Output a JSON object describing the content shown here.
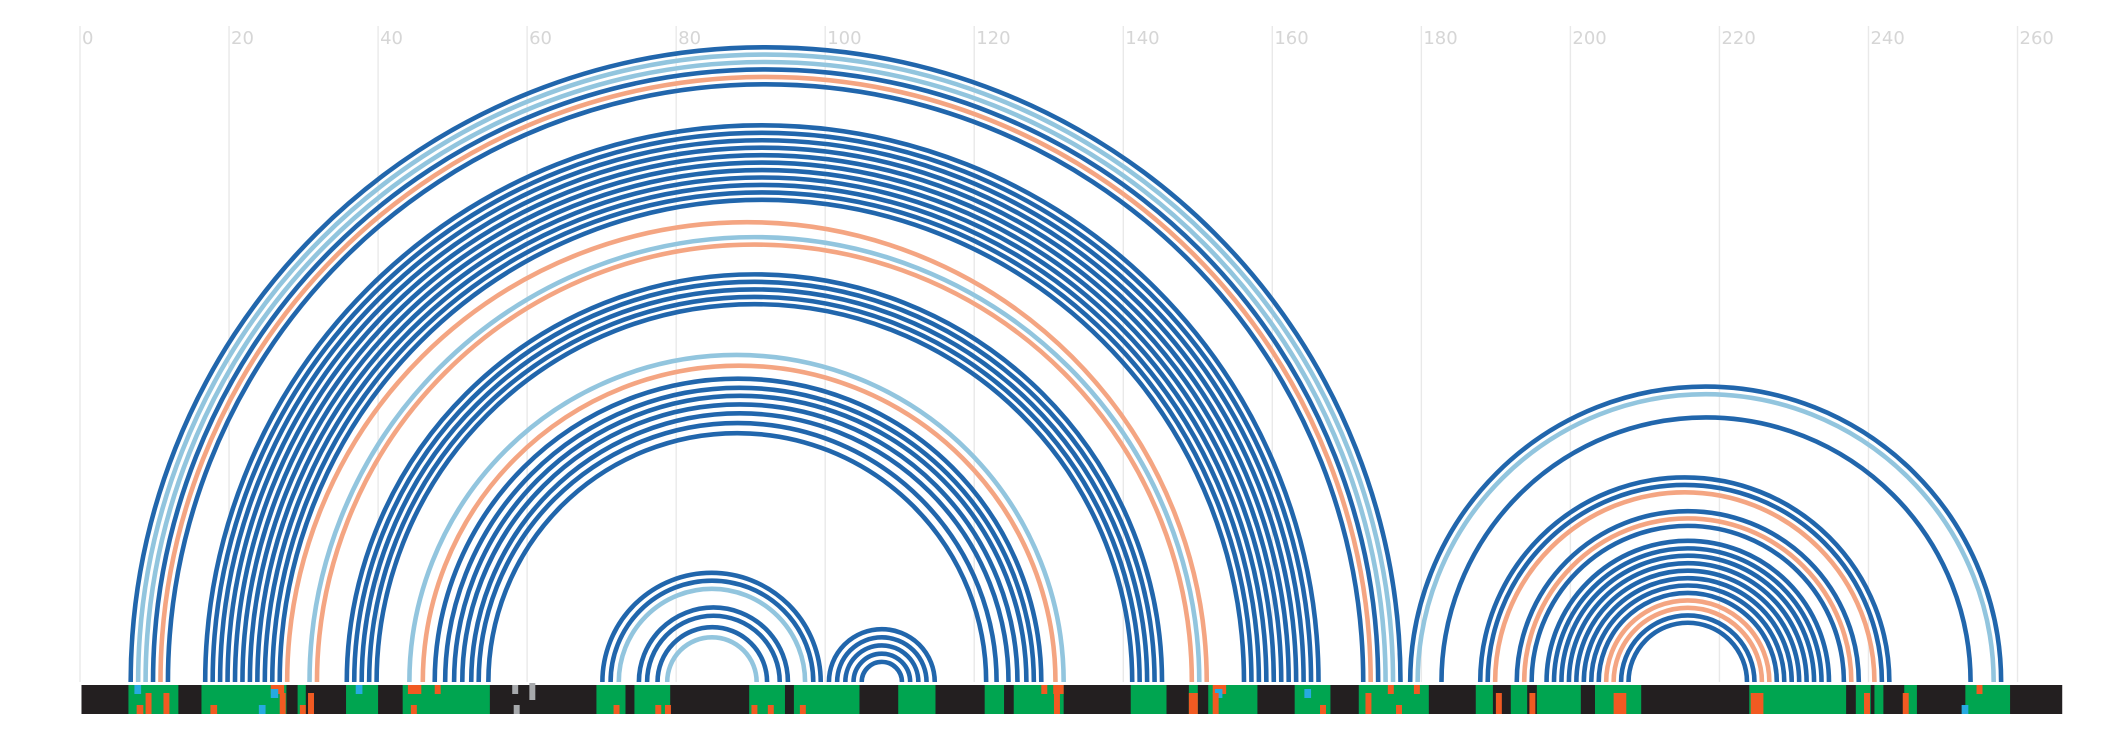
{
  "colors": {
    "paired": "#2166ac",
    "light_paired": "#92c5de",
    "salmon": "#f4a582",
    "track_base": "#231f20",
    "region": "#00a550",
    "mark_orange": "#f15a22",
    "mark_cyan": "#27aae1",
    "mark_gray": "#a7a9ac",
    "grid": "#e9e9e9",
    "tick_text": "#d6d6d6"
  },
  "axis": {
    "min": 0,
    "max": 266,
    "ticks": [
      0,
      20,
      40,
      60,
      80,
      100,
      120,
      140,
      160,
      180,
      200,
      220,
      240,
      260
    ],
    "tick_labels": [
      "0",
      "20",
      "40",
      "60",
      "80",
      "100",
      "120",
      "140",
      "160",
      "180",
      "200",
      "220",
      "240",
      "260"
    ]
  },
  "chart_data": {
    "type": "arc",
    "pairs": [
      {
        "i": 6.8,
        "j": 177.2,
        "kind": "paired"
      },
      {
        "i": 7.8,
        "j": 176.2,
        "kind": "light_paired"
      },
      {
        "i": 8.8,
        "j": 175.2,
        "kind": "light_paired"
      },
      {
        "i": 9.8,
        "j": 174.2,
        "kind": "paired"
      },
      {
        "i": 10.8,
        "j": 173.2,
        "kind": "salmon"
      },
      {
        "i": 11.8,
        "j": 172.2,
        "kind": "paired"
      },
      {
        "i": 16.8,
        "j": 166.2,
        "kind": "paired"
      },
      {
        "i": 17.8,
        "j": 165.2,
        "kind": "paired"
      },
      {
        "i": 18.8,
        "j": 164.2,
        "kind": "paired"
      },
      {
        "i": 19.8,
        "j": 163.2,
        "kind": "paired"
      },
      {
        "i": 20.8,
        "j": 162.2,
        "kind": "paired"
      },
      {
        "i": 21.8,
        "j": 161.2,
        "kind": "paired"
      },
      {
        "i": 22.8,
        "j": 160.2,
        "kind": "paired"
      },
      {
        "i": 23.8,
        "j": 159.2,
        "kind": "paired"
      },
      {
        "i": 24.8,
        "j": 158.2,
        "kind": "paired"
      },
      {
        "i": 25.8,
        "j": 157.2,
        "kind": "paired"
      },
      {
        "i": 26.8,
        "j": 156.2,
        "kind": "paired"
      },
      {
        "i": 27.8,
        "j": 151.2,
        "kind": "salmon"
      },
      {
        "i": 30.8,
        "j": 150.2,
        "kind": "light_paired"
      },
      {
        "i": 31.8,
        "j": 149.2,
        "kind": "salmon"
      },
      {
        "i": 35.8,
        "j": 145.2,
        "kind": "paired"
      },
      {
        "i": 36.8,
        "j": 144.2,
        "kind": "paired"
      },
      {
        "i": 37.8,
        "j": 143.2,
        "kind": "paired"
      },
      {
        "i": 38.8,
        "j": 142.2,
        "kind": "paired"
      },
      {
        "i": 39.8,
        "j": 141.2,
        "kind": "paired"
      },
      {
        "i": 44.2,
        "j": 132.0,
        "kind": "light_paired"
      },
      {
        "i": 46.0,
        "j": 130.9,
        "kind": "salmon"
      },
      {
        "i": 47.6,
        "j": 129.0,
        "kind": "paired"
      },
      {
        "i": 49.0,
        "j": 128.0,
        "kind": "paired"
      },
      {
        "i": 50.2,
        "j": 127.0,
        "kind": "paired"
      },
      {
        "i": 51.3,
        "j": 125.8,
        "kind": "paired"
      },
      {
        "i": 52.5,
        "j": 124.6,
        "kind": "paired"
      },
      {
        "i": 53.5,
        "j": 123.0,
        "kind": "paired"
      },
      {
        "i": 54.8,
        "j": 121.6,
        "kind": "paired"
      },
      {
        "i": 70.1,
        "j": 99.4,
        "kind": "paired"
      },
      {
        "i": 71.2,
        "j": 98.4,
        "kind": "paired"
      },
      {
        "i": 72.3,
        "j": 97.3,
        "kind": "light_paired"
      },
      {
        "i": 75.0,
        "j": 95.0,
        "kind": "paired"
      },
      {
        "i": 76.1,
        "j": 93.9,
        "kind": "paired"
      },
      {
        "i": 77.5,
        "j": 92.2,
        "kind": "paired"
      },
      {
        "i": 78.8,
        "j": 90.8,
        "kind": "light_paired"
      },
      {
        "i": 100.5,
        "j": 114.7,
        "kind": "paired"
      },
      {
        "i": 101.6,
        "j": 113.6,
        "kind": "paired"
      },
      {
        "i": 102.7,
        "j": 112.5,
        "kind": "paired"
      },
      {
        "i": 103.8,
        "j": 111.4,
        "kind": "paired"
      },
      {
        "i": 104.9,
        "j": 110.3,
        "kind": "paired"
      },
      {
        "i": 178.5,
        "j": 257.8,
        "kind": "paired"
      },
      {
        "i": 179.5,
        "j": 256.8,
        "kind": "light_paired"
      },
      {
        "i": 182.7,
        "j": 253.7,
        "kind": "paired"
      },
      {
        "i": 187.9,
        "j": 242.8,
        "kind": "paired"
      },
      {
        "i": 188.9,
        "j": 241.8,
        "kind": "paired"
      },
      {
        "i": 189.9,
        "j": 240.8,
        "kind": "salmon"
      },
      {
        "i": 192.8,
        "j": 238.7,
        "kind": "paired"
      },
      {
        "i": 193.8,
        "j": 237.7,
        "kind": "salmon"
      },
      {
        "i": 194.8,
        "j": 236.7,
        "kind": "paired"
      },
      {
        "i": 196.8,
        "j": 234.7,
        "kind": "paired"
      },
      {
        "i": 197.8,
        "j": 233.7,
        "kind": "paired"
      },
      {
        "i": 198.8,
        "j": 232.7,
        "kind": "paired"
      },
      {
        "i": 199.8,
        "j": 231.7,
        "kind": "paired"
      },
      {
        "i": 200.8,
        "j": 230.7,
        "kind": "paired"
      },
      {
        "i": 201.8,
        "j": 229.7,
        "kind": "paired"
      },
      {
        "i": 202.8,
        "j": 228.7,
        "kind": "paired"
      },
      {
        "i": 203.8,
        "j": 227.7,
        "kind": "paired"
      },
      {
        "i": 204.8,
        "j": 226.7,
        "kind": "salmon"
      },
      {
        "i": 205.8,
        "j": 225.7,
        "kind": "salmon"
      },
      {
        "i": 206.8,
        "j": 224.7,
        "kind": "paired"
      },
      {
        "i": 207.8,
        "j": 223.7,
        "kind": "paired"
      }
    ],
    "track": {
      "regions": [
        [
          6.5,
          13.2
        ],
        [
          16.3,
          27.7
        ],
        [
          29.2,
          30.3
        ],
        [
          35.7,
          40.0
        ],
        [
          43.3,
          55.0
        ],
        [
          69.3,
          73.2
        ],
        [
          74.4,
          79.2
        ],
        [
          89.8,
          94.6
        ],
        [
          95.8,
          104.6
        ],
        [
          109.8,
          114.8
        ],
        [
          121.4,
          124.0
        ],
        [
          125.3,
          132.0
        ],
        [
          141.0,
          145.8
        ],
        [
          148.8,
          150.0
        ],
        [
          151.4,
          158.0
        ],
        [
          163.0,
          167.8
        ],
        [
          171.6,
          181.0
        ],
        [
          187.3,
          189.6
        ],
        [
          192.0,
          194.2
        ],
        [
          195.5,
          201.4
        ],
        [
          203.3,
          209.5
        ],
        [
          224.0,
          237.0
        ],
        [
          238.3,
          240.3
        ],
        [
          240.8,
          242.0
        ],
        [
          244.8,
          246.5
        ],
        [
          253.0,
          259.0
        ]
      ],
      "marks": [
        {
          "x": 7.3,
          "w": 0.9,
          "color": "mark_cyan",
          "band": "top"
        },
        {
          "x": 7.6,
          "w": 0.9,
          "color": "mark_orange",
          "band": "bottom"
        },
        {
          "x": 8.8,
          "w": 0.8,
          "color": "mark_orange",
          "band": "full"
        },
        {
          "x": 11.2,
          "w": 0.8,
          "color": "mark_orange",
          "band": "full"
        },
        {
          "x": 17.5,
          "w": 0.9,
          "color": "mark_orange",
          "band": "bottom"
        },
        {
          "x": 24.0,
          "w": 0.9,
          "color": "mark_cyan",
          "band": "bottom"
        },
        {
          "x": 25.6,
          "w": 1.8,
          "color": "mark_orange",
          "band": "top"
        },
        {
          "x": 25.6,
          "w": 1.0,
          "color": "mark_cyan",
          "band": "upper"
        },
        {
          "x": 26.8,
          "w": 0.8,
          "color": "mark_orange",
          "band": "full"
        },
        {
          "x": 30.6,
          "w": 0.8,
          "color": "mark_orange",
          "band": "full"
        },
        {
          "x": 29.5,
          "w": 0.8,
          "color": "mark_orange",
          "band": "bottom"
        },
        {
          "x": 37.0,
          "w": 0.9,
          "color": "mark_cyan",
          "band": "top"
        },
        {
          "x": 44.0,
          "w": 1.8,
          "color": "mark_orange",
          "band": "top"
        },
        {
          "x": 44.4,
          "w": 0.8,
          "color": "mark_orange",
          "band": "bottom"
        },
        {
          "x": 47.6,
          "w": 0.8,
          "color": "mark_orange",
          "band": "top"
        },
        {
          "x": 71.6,
          "w": 0.8,
          "color": "mark_orange",
          "band": "bottom"
        },
        {
          "x": 77.2,
          "w": 0.8,
          "color": "mark_orange",
          "band": "bottom"
        },
        {
          "x": 78.5,
          "w": 0.8,
          "color": "mark_orange",
          "band": "bottom"
        },
        {
          "x": 90.1,
          "w": 0.8,
          "color": "mark_orange",
          "band": "bottom"
        },
        {
          "x": 92.3,
          "w": 0.8,
          "color": "mark_orange",
          "band": "bottom"
        },
        {
          "x": 96.6,
          "w": 0.8,
          "color": "mark_orange",
          "band": "bottom"
        },
        {
          "x": 129.0,
          "w": 0.8,
          "color": "mark_orange",
          "band": "top"
        },
        {
          "x": 130.6,
          "w": 1.4,
          "color": "mark_orange",
          "band": "top"
        },
        {
          "x": 130.7,
          "w": 0.8,
          "color": "mark_orange",
          "band": "full"
        },
        {
          "x": 148.8,
          "w": 1.2,
          "color": "mark_orange",
          "band": "full"
        },
        {
          "x": 152.0,
          "w": 1.8,
          "color": "mark_orange",
          "band": "top"
        },
        {
          "x": 152.3,
          "w": 1.0,
          "color": "mark_cyan",
          "band": "upper"
        },
        {
          "x": 152.0,
          "w": 0.8,
          "color": "mark_orange",
          "band": "full"
        },
        {
          "x": 164.3,
          "w": 0.9,
          "color": "mark_cyan",
          "band": "upper"
        },
        {
          "x": 166.4,
          "w": 0.8,
          "color": "mark_orange",
          "band": "bottom"
        },
        {
          "x": 172.5,
          "w": 0.8,
          "color": "mark_orange",
          "band": "full"
        },
        {
          "x": 175.5,
          "w": 0.8,
          "color": "mark_orange",
          "band": "top"
        },
        {
          "x": 176.6,
          "w": 0.8,
          "color": "mark_orange",
          "band": "bottom"
        },
        {
          "x": 179.0,
          "w": 0.8,
          "color": "mark_orange",
          "band": "top"
        },
        {
          "x": 190.0,
          "w": 0.8,
          "color": "mark_orange",
          "band": "full"
        },
        {
          "x": 194.5,
          "w": 0.8,
          "color": "mark_orange",
          "band": "full"
        },
        {
          "x": 205.8,
          "w": 1.7,
          "color": "mark_orange",
          "band": "full"
        },
        {
          "x": 224.2,
          "w": 1.7,
          "color": "mark_orange",
          "band": "full"
        },
        {
          "x": 239.4,
          "w": 0.8,
          "color": "mark_orange",
          "band": "full"
        },
        {
          "x": 244.6,
          "w": 0.8,
          "color": "mark_orange",
          "band": "full"
        },
        {
          "x": 252.5,
          "w": 0.9,
          "color": "mark_cyan",
          "band": "bottom"
        },
        {
          "x": 254.5,
          "w": 0.8,
          "color": "mark_orange",
          "band": "top"
        }
      ],
      "gray_marks": [
        {
          "x": 58.0,
          "w": 0.8,
          "band": "top"
        },
        {
          "x": 58.2,
          "w": 0.8,
          "band": "bottom"
        },
        {
          "x": 60.3,
          "w": 0.8,
          "band": "upper"
        }
      ]
    }
  }
}
